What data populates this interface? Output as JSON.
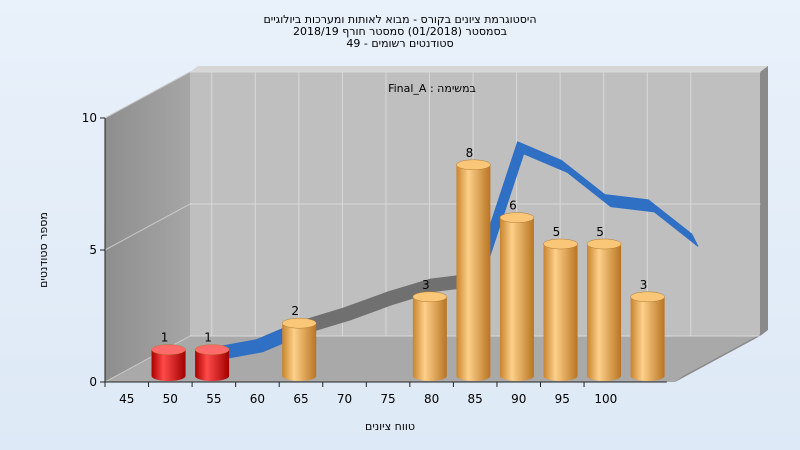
{
  "chart_data": {
    "type": "bar",
    "title_lines": [
      "היסטוגרמת ציונים בקורס - מבוא לאותות ומערכות ביולוגיים",
      "בסמסטר  (01/2018)  סמסטר חורף 2018/19",
      "סטודנטים רשומים - 49"
    ],
    "annotation": "במשימה : Final_A",
    "xlabel": "טווח ציונים",
    "ylabel": "מספר סטודנטים",
    "x_ticks": [
      "45",
      "50",
      "55",
      "60",
      "65",
      "70",
      "75",
      "80",
      "85",
      "90",
      "95",
      "100"
    ],
    "y_ticks": [
      "0",
      "5",
      "10"
    ],
    "ylim": [
      0,
      10
    ],
    "bars": [
      {
        "x": 47.5,
        "value": 1,
        "label": "1",
        "color": "red"
      },
      {
        "x": 52.5,
        "value": 1,
        "label": "1",
        "color": "red"
      },
      {
        "x": 62.5,
        "value": 2,
        "label": "2",
        "color": "orange"
      },
      {
        "x": 77.5,
        "value": 3,
        "label": "3",
        "color": "orange"
      },
      {
        "x": 82.5,
        "value": 8,
        "label": "8",
        "color": "orange"
      },
      {
        "x": 87.5,
        "value": 6,
        "label": "6",
        "color": "orange"
      },
      {
        "x": 92.5,
        "value": 5,
        "label": "5",
        "color": "orange"
      },
      {
        "x": 97.5,
        "value": 5,
        "label": "5",
        "color": "orange"
      },
      {
        "x": 102.5,
        "value": 3,
        "label": "3",
        "color": "orange"
      }
    ],
    "curve": {
      "points": [
        [
          50,
          0.2
        ],
        [
          55,
          0.5
        ],
        [
          60,
          1.2
        ],
        [
          65,
          1.7
        ],
        [
          70,
          2.3
        ],
        [
          75,
          2.8
        ],
        [
          80,
          3.0
        ],
        [
          85,
          8.0
        ],
        [
          90,
          7.3
        ],
        [
          95,
          6.0
        ],
        [
          100,
          5.8
        ],
        [
          105,
          4.5
        ]
      ],
      "colors": {
        "front": "#2f6fc4",
        "back": "#707070"
      }
    },
    "colors": {
      "red": "#e01010",
      "orange": "#e5a34a"
    },
    "grid": true
  }
}
